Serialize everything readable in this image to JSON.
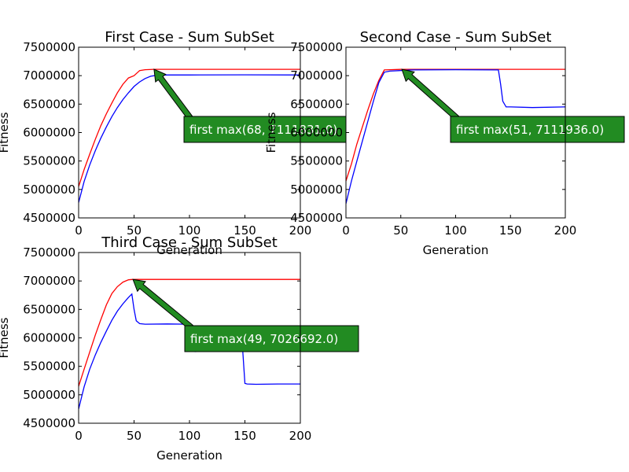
{
  "chart_data": [
    {
      "type": "line",
      "title": "First Case - Sum SubSet",
      "xlabel": "Generation",
      "ylabel": "Fitness",
      "xlim": [
        0,
        200
      ],
      "ylim": [
        4500000,
        7500000
      ],
      "xticks": [
        0,
        50,
        100,
        150,
        200
      ],
      "xtick_labels": [
        "0",
        "50",
        "100",
        "150",
        "200"
      ],
      "yticks": [
        4500000,
        5000000,
        5500000,
        6000000,
        6500000,
        7000000,
        7500000
      ],
      "ytick_labels": [
        "4500000",
        "5000000",
        "5500000",
        "6000000",
        "6500000",
        "7000000",
        "7500000"
      ],
      "grid": false,
      "series": [
        {
          "color": "#ff0000",
          "x": [
            0,
            5,
            10,
            15,
            20,
            25,
            30,
            35,
            40,
            45,
            50,
            55,
            60,
            68,
            100,
            150,
            200
          ],
          "y": [
            5050000,
            5350000,
            5620000,
            5880000,
            6120000,
            6330000,
            6520000,
            6700000,
            6850000,
            6960000,
            7000000,
            7090000,
            7105000,
            7111831,
            7111831,
            7111831,
            7111831
          ]
        },
        {
          "color": "#0000ff",
          "x": [
            0,
            5,
            10,
            15,
            20,
            25,
            30,
            35,
            40,
            45,
            50,
            55,
            60,
            65,
            70,
            80,
            100,
            150,
            200
          ],
          "y": [
            4770000,
            5140000,
            5430000,
            5680000,
            5900000,
            6100000,
            6280000,
            6440000,
            6580000,
            6700000,
            6810000,
            6890000,
            6950000,
            6990000,
            7005000,
            7012000,
            7012000,
            7015000,
            7012000
          ]
        }
      ],
      "annotation": {
        "text": "first max(68, 7111831.0)",
        "x": 68,
        "y": 7111831,
        "box_color": "#228b22",
        "text_color": "#ffffff"
      }
    },
    {
      "type": "line",
      "title": "Second Case - Sum SubSet",
      "xlabel": "Generation",
      "ylabel": "Fitness",
      "xlim": [
        0,
        200
      ],
      "ylim": [
        4500000,
        7500000
      ],
      "xticks": [
        0,
        50,
        100,
        150,
        200
      ],
      "xtick_labels": [
        "0",
        "50",
        "100",
        "150",
        "200"
      ],
      "yticks": [
        4500000,
        5000000,
        5500000,
        6000000,
        6500000,
        7000000,
        7500000
      ],
      "ytick_labels": [
        "4500000",
        "5000000",
        "5500000",
        "6000000",
        "6500000",
        "7000000",
        "7500000"
      ],
      "grid": false,
      "series": [
        {
          "color": "#ff0000",
          "x": [
            0,
            5,
            10,
            15,
            20,
            25,
            30,
            35,
            40,
            51,
            100,
            150,
            200
          ],
          "y": [
            5150000,
            5450000,
            5800000,
            6100000,
            6400000,
            6680000,
            6920000,
            7100000,
            7105000,
            7111936,
            7111936,
            7111936,
            7111936
          ]
        },
        {
          "color": "#0000ff",
          "x": [
            0,
            5,
            10,
            15,
            20,
            25,
            30,
            35,
            40,
            60,
            100,
            139,
            141,
            143,
            146,
            150,
            170,
            200
          ],
          "y": [
            4750000,
            5150000,
            5500000,
            5850000,
            6200000,
            6550000,
            6880000,
            7060000,
            7080000,
            7100000,
            7105000,
            7100000,
            6850000,
            6550000,
            6450000,
            6450000,
            6440000,
            6450000
          ]
        }
      ],
      "annotation": {
        "text": "first max(51, 7111936.0)",
        "x": 51,
        "y": 7111936,
        "box_color": "#228b22",
        "text_color": "#ffffff"
      }
    },
    {
      "type": "line",
      "title": "Third Case - Sum SubSet",
      "xlabel": "Generation",
      "ylabel": "Fitness",
      "xlim": [
        0,
        200
      ],
      "ylim": [
        4500000,
        7500000
      ],
      "xticks": [
        0,
        50,
        100,
        150,
        200
      ],
      "xtick_labels": [
        "0",
        "50",
        "100",
        "150",
        "200"
      ],
      "yticks": [
        4500000,
        5000000,
        5500000,
        6000000,
        6500000,
        7000000,
        7500000
      ],
      "ytick_labels": [
        "4500000",
        "5000000",
        "5500000",
        "6000000",
        "6500000",
        "7000000",
        "7500000"
      ],
      "grid": false,
      "series": [
        {
          "color": "#ff0000",
          "x": [
            0,
            5,
            10,
            15,
            20,
            25,
            30,
            35,
            40,
            45,
            49,
            100,
            150,
            200
          ],
          "y": [
            5150000,
            5450000,
            5750000,
            6050000,
            6320000,
            6580000,
            6780000,
            6900000,
            6980000,
            7020000,
            7026692,
            7026692,
            7026692,
            7026692
          ]
        },
        {
          "color": "#0000ff",
          "x": [
            0,
            5,
            10,
            15,
            20,
            25,
            30,
            35,
            40,
            45,
            48,
            50,
            52,
            55,
            60,
            80,
            98,
            100,
            105,
            120,
            140,
            148,
            150,
            152,
            160,
            180,
            200
          ],
          "y": [
            4750000,
            5140000,
            5450000,
            5700000,
            5920000,
            6120000,
            6310000,
            6470000,
            6600000,
            6710000,
            6770000,
            6500000,
            6300000,
            6250000,
            6240000,
            6245000,
            6240000,
            5900000,
            5760000,
            5770000,
            5775000,
            5780000,
            5200000,
            5190000,
            5185000,
            5190000,
            5190000
          ]
        }
      ],
      "annotation": {
        "text": "first max(49, 7026692.0)",
        "x": 49,
        "y": 7026692,
        "box_color": "#228b22",
        "text_color": "#ffffff"
      }
    }
  ]
}
